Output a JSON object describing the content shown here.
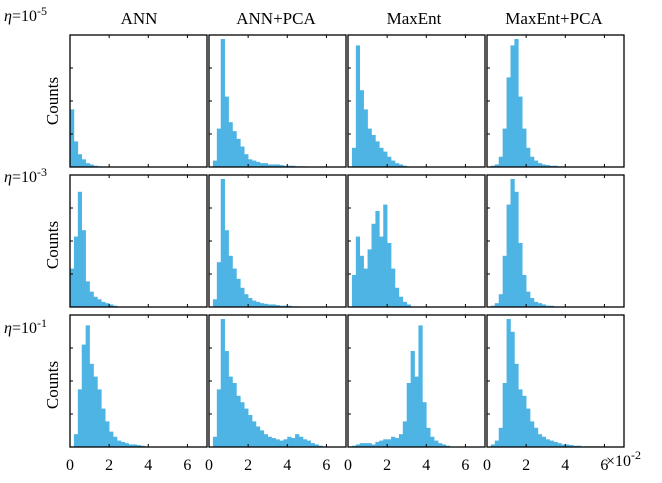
{
  "chart_data": {
    "type": "histogram-grid",
    "column_titles": [
      "ANN",
      "ANN+PCA",
      "MaxEnt",
      "MaxEnt+PCA"
    ],
    "row_labels": [
      {
        "symbol": "η",
        "text": "=10",
        "exp": "-5"
      },
      {
        "symbol": "η",
        "text": "=10",
        "exp": "-3"
      },
      {
        "symbol": "η",
        "text": "=10",
        "exp": "-1"
      }
    ],
    "ylabel": "Counts",
    "x_ticks": [
      "0",
      "2",
      "4",
      "6"
    ],
    "x_tick_values": [
      0,
      2,
      4,
      6
    ],
    "xlim": [
      0,
      7
    ],
    "x_exponent": {
      "base": "×10",
      "exp": "-2"
    },
    "bar_color": "#4db4e4",
    "bin_width": 0.2,
    "grid": false,
    "panels": [
      [
        {
          "method": "ANN",
          "eta": "1e-5",
          "bin_start": 0.0,
          "heights": [
            0.45,
            0.2,
            0.1,
            0.06,
            0.03,
            0.02,
            0.01,
            0.005
          ]
        },
        {
          "method": "ANN+PCA",
          "eta": "1e-5",
          "bin_start": 0.0,
          "heights": [
            0.0,
            0.05,
            0.3,
            1.0,
            0.55,
            0.35,
            0.28,
            0.22,
            0.16,
            0.1,
            0.06,
            0.05,
            0.04,
            0.03,
            0.03,
            0.02,
            0.02,
            0.02,
            0.015,
            0.01,
            0.01,
            0.01,
            0.005,
            0.005,
            0.005
          ]
        },
        {
          "method": "MaxEnt",
          "eta": "1e-5",
          "bin_start": 0.0,
          "heights": [
            0.0,
            0.15,
            0.95,
            0.6,
            0.45,
            0.3,
            0.25,
            0.2,
            0.15,
            0.12,
            0.08,
            0.05,
            0.03,
            0.02,
            0.01
          ]
        },
        {
          "method": "MaxEnt+PCA",
          "eta": "1e-5",
          "bin_start": 0.0,
          "heights": [
            0.0,
            0.01,
            0.02,
            0.08,
            0.3,
            0.7,
            0.95,
            1.0,
            0.55,
            0.3,
            0.15,
            0.08,
            0.05,
            0.03,
            0.02,
            0.015,
            0.01,
            0.01,
            0.005,
            0.005
          ]
        }
      ],
      [
        {
          "method": "ANN",
          "eta": "1e-3",
          "bin_start": 0.0,
          "heights": [
            0.3,
            0.55,
            0.9,
            0.6,
            0.2,
            0.12,
            0.08,
            0.06,
            0.04,
            0.03,
            0.02,
            0.01
          ]
        },
        {
          "method": "ANN+PCA",
          "eta": "1e-3",
          "bin_start": 0.0,
          "heights": [
            0.0,
            0.06,
            0.35,
            1.0,
            0.6,
            0.4,
            0.3,
            0.22,
            0.15,
            0.1,
            0.07,
            0.05,
            0.04,
            0.03,
            0.025,
            0.02,
            0.02,
            0.015,
            0.01,
            0.01,
            0.01,
            0.005,
            0.005
          ]
        },
        {
          "method": "MaxEnt",
          "eta": "1e-3",
          "bin_start": 0.0,
          "heights": [
            0.0,
            0.25,
            0.55,
            0.4,
            0.3,
            0.45,
            0.65,
            0.75,
            0.55,
            0.8,
            0.5,
            0.3,
            0.15,
            0.08,
            0.04,
            0.02
          ]
        },
        {
          "method": "MaxEnt+PCA",
          "eta": "1e-3",
          "bin_start": 0.0,
          "heights": [
            0.0,
            0.01,
            0.03,
            0.1,
            0.4,
            0.8,
            1.0,
            0.9,
            0.5,
            0.25,
            0.12,
            0.07,
            0.04,
            0.03,
            0.02,
            0.01,
            0.01,
            0.005
          ]
        }
      ],
      [
        {
          "method": "ANN",
          "eta": "1e-1",
          "bin_start": 0.0,
          "heights": [
            0.0,
            0.1,
            0.45,
            0.8,
            0.95,
            0.65,
            0.55,
            0.45,
            0.3,
            0.2,
            0.12,
            0.08,
            0.05,
            0.04,
            0.03,
            0.02,
            0.02,
            0.015,
            0.01,
            0.005
          ]
        },
        {
          "method": "ANN+PCA",
          "eta": "1e-1",
          "bin_start": 0.0,
          "heights": [
            0.0,
            0.08,
            0.45,
            1.0,
            0.75,
            0.55,
            0.5,
            0.4,
            0.35,
            0.3,
            0.25,
            0.2,
            0.16,
            0.13,
            0.1,
            0.08,
            0.07,
            0.06,
            0.05,
            0.06,
            0.08,
            0.07,
            0.1,
            0.08,
            0.06,
            0.05,
            0.03,
            0.02,
            0.01
          ]
        },
        {
          "method": "MaxEnt",
          "eta": "1e-1",
          "bin_start": 0.0,
          "heights": [
            0.0,
            0.01,
            0.02,
            0.03,
            0.03,
            0.03,
            0.02,
            0.04,
            0.05,
            0.06,
            0.06,
            0.08,
            0.07,
            0.1,
            0.2,
            0.5,
            0.75,
            0.55,
            0.95,
            0.35,
            0.15,
            0.08,
            0.05,
            0.03,
            0.02,
            0.01
          ]
        },
        {
          "method": "MaxEnt+PCA",
          "eta": "1e-1",
          "bin_start": 0.0,
          "heights": [
            0.0,
            0.02,
            0.05,
            0.15,
            0.5,
            1.0,
            0.9,
            0.65,
            0.45,
            0.4,
            0.3,
            0.2,
            0.15,
            0.1,
            0.08,
            0.06,
            0.05,
            0.04,
            0.03,
            0.02,
            0.02,
            0.015,
            0.01,
            0.01,
            0.005,
            0.005,
            0.005,
            0.005,
            0.005
          ]
        }
      ]
    ]
  }
}
